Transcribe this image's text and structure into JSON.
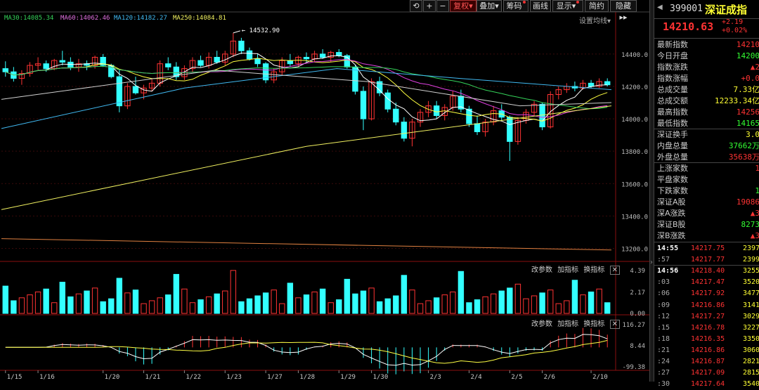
{
  "toolbar": {
    "fuquan": "复权",
    "diejia": "叠加",
    "chouma": "筹码",
    "huaxian": "画线",
    "xianshi": "显示",
    "jianyue": "简约",
    "yincang": "隐藏"
  },
  "ma_legend": [
    {
      "text": "MA30:14085.34",
      "color": "#35d35a"
    },
    {
      "text": "MA60:14062.46",
      "color": "#e070e0"
    },
    {
      "text": "MA120:14182.27",
      "color": "#40b8f0"
    },
    {
      "text": "MA250:14084.81",
      "color": "#f0f060"
    }
  ],
  "settings_label": "设置均线",
  "peak_label": "14532.90",
  "price_axis": [
    "14400.0",
    "14200.0",
    "14000.0",
    "13800.0",
    "13600.0",
    "13400.0",
    "13200.0"
  ],
  "vol_panel": {
    "adjust": "改参数",
    "add": "加指标",
    "switch": "换指标",
    "axis": [
      "4.39",
      "2.17",
      "0.00"
    ]
  },
  "macd_panel": {
    "adjust": "改参数",
    "add": "加指标",
    "switch": "换指标",
    "axis": [
      "116.27",
      "8.44",
      "-99.38"
    ]
  },
  "dates": [
    "1/15",
    "1/16",
    "1/20",
    "1/21",
    "1/22",
    "1/23",
    "1/27",
    "1/28",
    "1/29",
    "1/30",
    "2/3",
    "2/4",
    "2/5",
    "2/6",
    "2/10"
  ],
  "colors": {
    "up": "#ff3333",
    "down": "#33ffff",
    "accent": "#ff3333"
  },
  "quote": {
    "code": "399001",
    "name": "深证成指",
    "price": "14210.63",
    "change": "+2.19",
    "change_pct": "+0.02%",
    "rows": [
      {
        "k": "最新指数",
        "v": "14210",
        "c": "#f33"
      },
      {
        "k": "今日开盘",
        "v": "14200",
        "c": "#3f3"
      },
      {
        "k": "指数涨跌",
        "v": "▲2",
        "c": "#f33"
      },
      {
        "k": "指数涨幅",
        "v": "+0.0",
        "c": "#f33"
      },
      {
        "k": "总成交量",
        "v": "7.33亿",
        "c": "#ff3"
      },
      {
        "k": "总成交额",
        "v": "12233.34亿",
        "c": "#ff3"
      },
      {
        "k": "最高指数",
        "v": "14256",
        "c": "#f33"
      },
      {
        "k": "最低指数",
        "v": "14165",
        "c": "#3f3"
      },
      {
        "k": "深证换手",
        "v": "3.0",
        "c": "#ff3"
      },
      {
        "k": "内盘总量",
        "v": "37662万",
        "c": "#3f3"
      },
      {
        "k": "外盘总量",
        "v": "35638万",
        "c": "#f33"
      },
      {
        "k": "上涨家数",
        "v": "1",
        "c": "#f33"
      },
      {
        "k": "平盘家数",
        "v": "",
        "c": "#fff"
      },
      {
        "k": "下跌家数",
        "v": "1",
        "c": "#3f3"
      },
      {
        "k": "深证A股",
        "v": "19086",
        "c": "#f33"
      },
      {
        "k": "深A涨跌",
        "v": "▲3",
        "c": "#f33"
      },
      {
        "k": "深证B股",
        "v": "8273",
        "c": "#3f3"
      },
      {
        "k": "深B涨跌",
        "v": "▲3",
        "c": "#f33"
      }
    ],
    "ticks": [
      {
        "t": "14:55",
        "p": "14217.75",
        "q": "2397",
        "bold": true
      },
      {
        "t": ":57",
        "p": "14217.77",
        "q": "2399",
        "bold": false
      },
      {
        "t": "14:56",
        "p": "14218.40",
        "q": "3255",
        "bold": true
      },
      {
        "t": ":03",
        "p": "14217.47",
        "q": "3520",
        "bold": false
      },
      {
        "t": ":06",
        "p": "14217.92",
        "q": "3477",
        "bold": false
      },
      {
        "t": ":09",
        "p": "14216.86",
        "q": "3141",
        "bold": false
      },
      {
        "t": ":12",
        "p": "14217.27",
        "q": "3029",
        "bold": false
      },
      {
        "t": ":15",
        "p": "14216.78",
        "q": "3227",
        "bold": false
      },
      {
        "t": ":18",
        "p": "14216.35",
        "q": "3350",
        "bold": false
      },
      {
        "t": ":21",
        "p": "14216.86",
        "q": "3060",
        "bold": false
      },
      {
        "t": ":24",
        "p": "14216.87",
        "q": "2821",
        "bold": false
      },
      {
        "t": ":27",
        "p": "14217.09",
        "q": "2815",
        "bold": false
      },
      {
        "t": ":30",
        "p": "14217.64",
        "q": "3540",
        "bold": false
      }
    ]
  },
  "chart_data": {
    "type": "candlestick",
    "ylim": [
      13150,
      14560
    ],
    "candles": [
      [
        14310,
        14355,
        14260,
        14290
      ],
      [
        14290,
        14320,
        14230,
        14250
      ],
      [
        14250,
        14300,
        14210,
        14280
      ],
      [
        14280,
        14350,
        14260,
        14330
      ],
      [
        14330,
        14380,
        14300,
        14340
      ],
      [
        14340,
        14360,
        14290,
        14310
      ],
      [
        14310,
        14370,
        14300,
        14360
      ],
      [
        14360,
        14420,
        14330,
        14350
      ],
      [
        14350,
        14380,
        14300,
        14320
      ],
      [
        14320,
        14370,
        14290,
        14340
      ],
      [
        14340,
        14360,
        14300,
        14330
      ],
      [
        14330,
        14390,
        14310,
        14380
      ],
      [
        14380,
        14400,
        14320,
        14330
      ],
      [
        14330,
        14340,
        14250,
        14260
      ],
      [
        14260,
        14300,
        14040,
        14080
      ],
      [
        14080,
        14220,
        14060,
        14200
      ],
      [
        14200,
        14260,
        14150,
        14160
      ],
      [
        14160,
        14210,
        14120,
        14190
      ],
      [
        14190,
        14250,
        14170,
        14220
      ],
      [
        14220,
        14360,
        14200,
        14340
      ],
      [
        14340,
        14380,
        14300,
        14320
      ],
      [
        14320,
        14350,
        14240,
        14260
      ],
      [
        14260,
        14330,
        14240,
        14310
      ],
      [
        14310,
        14380,
        14290,
        14360
      ],
      [
        14360,
        14390,
        14320,
        14330
      ],
      [
        14330,
        14410,
        14310,
        14380
      ],
      [
        14380,
        14420,
        14340,
        14350
      ],
      [
        14350,
        14420,
        14330,
        14400
      ],
      [
        14400,
        14530,
        14380,
        14480
      ],
      [
        14480,
        14500,
        14400,
        14420
      ],
      [
        14420,
        14440,
        14360,
        14370
      ],
      [
        14370,
        14400,
        14320,
        14340
      ],
      [
        14340,
        14350,
        14220,
        14240
      ],
      [
        14240,
        14310,
        14220,
        14290
      ],
      [
        14290,
        14380,
        14270,
        14360
      ],
      [
        14360,
        14400,
        14320,
        14340
      ],
      [
        14340,
        14390,
        14320,
        14380
      ],
      [
        14380,
        14410,
        14350,
        14370
      ],
      [
        14370,
        14420,
        14350,
        14400
      ],
      [
        14400,
        14430,
        14370,
        14380
      ],
      [
        14380,
        14420,
        14350,
        14410
      ],
      [
        14410,
        14430,
        14380,
        14390
      ],
      [
        14390,
        14400,
        14310,
        14320
      ],
      [
        14320,
        14330,
        14150,
        14170
      ],
      [
        14170,
        14200,
        13930,
        14000
      ],
      [
        14000,
        14250,
        13990,
        14230
      ],
      [
        14230,
        14260,
        14140,
        14160
      ],
      [
        14160,
        14180,
        14040,
        14060
      ],
      [
        14060,
        14100,
        13960,
        13980
      ],
      [
        13980,
        14010,
        13860,
        13880
      ],
      [
        13880,
        14000,
        13830,
        13980
      ],
      [
        13980,
        14060,
        13950,
        14040
      ],
      [
        14040,
        14110,
        14010,
        14080
      ],
      [
        14080,
        14110,
        14000,
        14020
      ],
      [
        14020,
        14090,
        13990,
        14070
      ],
      [
        14070,
        14170,
        14050,
        14140
      ],
      [
        14140,
        14180,
        14040,
        14060
      ],
      [
        14060,
        14080,
        13950,
        13970
      ],
      [
        13970,
        14020,
        13900,
        13920
      ],
      [
        13920,
        14000,
        13890,
        13980
      ],
      [
        13980,
        14080,
        13960,
        14050
      ],
      [
        14050,
        14090,
        13990,
        14010
      ],
      [
        14010,
        14020,
        13740,
        13860
      ],
      [
        13860,
        14010,
        13840,
        13990
      ],
      [
        13990,
        14060,
        13970,
        14040
      ],
      [
        14040,
        14110,
        14020,
        14090
      ],
      [
        14090,
        14100,
        13930,
        13950
      ],
      [
        13950,
        14170,
        13940,
        14150
      ],
      [
        14150,
        14200,
        14120,
        14180
      ],
      [
        14180,
        14220,
        14160,
        14200
      ],
      [
        14200,
        14230,
        14170,
        14190
      ],
      [
        14190,
        14240,
        14180,
        14220
      ],
      [
        14220,
        14240,
        14190,
        14200
      ],
      [
        14200,
        14250,
        14190,
        14230
      ],
      [
        14230,
        14250,
        14200,
        14210
      ]
    ],
    "volume_ylim": [
      0,
      4.39
    ],
    "macd_ylim": [
      -99.38,
      116.27
    ]
  }
}
